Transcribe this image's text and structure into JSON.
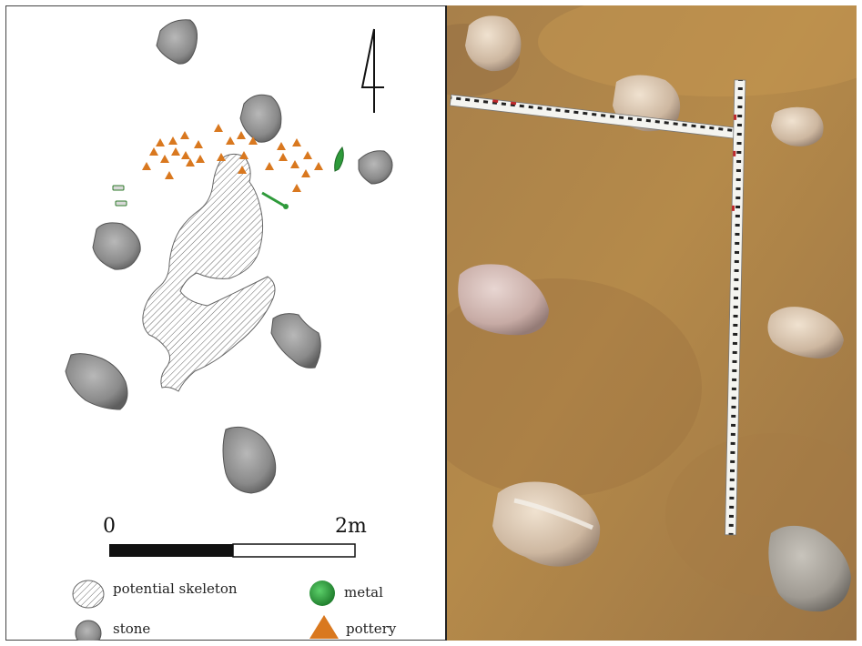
{
  "plan": {
    "scale": {
      "start_label": "0",
      "end_label": "2m"
    },
    "legend": {
      "skeleton_label": "potential skeleton",
      "stone_label": "stone",
      "metal_label": "metal",
      "pottery_label": "pottery"
    }
  },
  "colors": {
    "stone": "#8a8a8a",
    "pottery": "#d9781f",
    "metal": "#2e9a3a",
    "soil": "#b58a4a"
  }
}
